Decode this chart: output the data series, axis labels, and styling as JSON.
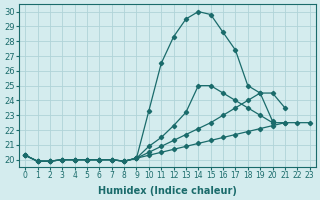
{
  "xlabel": "Humidex (Indice chaleur)",
  "ylabel": "",
  "xlim": [
    -0.5,
    23.5
  ],
  "ylim": [
    19.5,
    30.5
  ],
  "yticks": [
    20,
    21,
    22,
    23,
    24,
    25,
    26,
    27,
    28,
    29,
    30
  ],
  "xticks": [
    0,
    1,
    2,
    3,
    4,
    5,
    6,
    7,
    8,
    9,
    10,
    11,
    12,
    13,
    14,
    15,
    16,
    17,
    18,
    19,
    20,
    21,
    22,
    23
  ],
  "bg_color": "#d4ecee",
  "grid_color": "#b0d4d8",
  "line_color": "#1a6b6b",
  "series_x": [
    [
      0,
      1,
      2,
      3,
      4,
      5,
      6,
      7,
      8,
      9,
      10,
      11,
      12,
      13,
      14,
      15,
      16,
      17,
      18,
      19,
      20
    ],
    [
      0,
      1,
      2,
      3,
      4,
      5,
      6,
      7,
      8,
      9,
      10,
      11,
      12,
      13,
      14,
      15,
      16,
      17,
      18,
      19,
      20,
      21
    ],
    [
      0,
      1,
      2,
      3,
      4,
      5,
      6,
      7,
      8,
      9,
      10,
      11,
      12,
      13,
      14,
      15,
      16,
      17,
      18,
      19,
      20,
      21
    ],
    [
      0,
      1,
      2,
      3,
      4,
      5,
      6,
      7,
      8,
      9,
      10,
      11,
      12,
      13,
      14,
      15,
      16,
      17,
      18,
      19,
      20,
      21,
      22,
      23
    ]
  ],
  "series": [
    [
      20.3,
      19.9,
      19.9,
      20.0,
      20.0,
      20.0,
      20.0,
      20.0,
      19.9,
      20.1,
      23.3,
      26.5,
      28.3,
      29.5,
      30.0,
      29.8,
      28.6,
      27.4,
      25.0,
      24.5,
      22.6
    ],
    [
      20.3,
      19.9,
      19.9,
      20.0,
      20.0,
      20.0,
      20.0,
      20.0,
      19.9,
      20.1,
      20.9,
      21.5,
      22.3,
      23.2,
      25.0,
      25.0,
      24.5,
      24.0,
      23.5,
      23.0,
      22.5,
      22.5
    ],
    [
      20.3,
      19.9,
      19.9,
      20.0,
      20.0,
      20.0,
      20.0,
      20.0,
      19.9,
      20.1,
      20.5,
      20.9,
      21.3,
      21.7,
      22.1,
      22.5,
      23.0,
      23.5,
      24.0,
      24.5,
      24.5,
      23.5
    ],
    [
      20.3,
      19.9,
      19.9,
      20.0,
      20.0,
      20.0,
      20.0,
      20.0,
      19.9,
      20.1,
      20.3,
      20.5,
      20.7,
      20.9,
      21.1,
      21.3,
      21.5,
      21.7,
      21.9,
      22.1,
      22.3,
      22.5,
      22.5,
      22.5
    ]
  ]
}
